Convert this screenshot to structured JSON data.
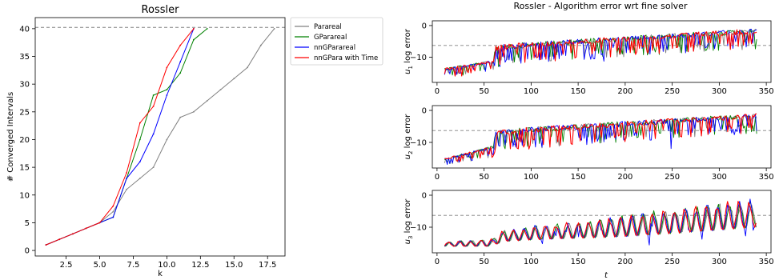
{
  "chart_data": [
    {
      "type": "line",
      "title": "Rossler",
      "xlabel": "k",
      "ylabel": "# Converged Intervals",
      "xlim": [
        0.2,
        18.8
      ],
      "ylim": [
        -1,
        42
      ],
      "xticks": [
        2.5,
        5.0,
        7.5,
        10.0,
        12.5,
        15.0,
        17.5
      ],
      "xtick_labels": [
        "2.5",
        "5.0",
        "7.5",
        "10.0",
        "12.5",
        "15.0",
        "17.5"
      ],
      "yticks": [
        0,
        5,
        10,
        15,
        20,
        25,
        30,
        35,
        40
      ],
      "ytick_labels": [
        "0",
        "5",
        "10",
        "15",
        "20",
        "25",
        "30",
        "35",
        "40"
      ],
      "reference_line": {
        "y": 40,
        "style": "dashed"
      },
      "legend": "outside-right",
      "series": [
        {
          "name": "Parareal",
          "color": "#808080",
          "x": [
            1,
            2,
            3,
            4,
            5,
            6,
            7,
            8,
            9,
            10,
            11,
            12,
            13,
            14,
            15,
            16,
            17,
            18
          ],
          "y": [
            1,
            2,
            3,
            4,
            5,
            7,
            11,
            13,
            15,
            20,
            24,
            25,
            27,
            29,
            31,
            33,
            37,
            40
          ]
        },
        {
          "name": "GParareal",
          "color": "#008000",
          "x": [
            1,
            2,
            3,
            4,
            5,
            6,
            7,
            8,
            9,
            10,
            11,
            12,
            13
          ],
          "y": [
            1,
            2,
            3,
            4,
            5,
            6,
            13,
            20,
            28,
            29,
            32,
            38,
            40
          ]
        },
        {
          "name": "nnGParareal",
          "color": "#0000ff",
          "x": [
            1,
            2,
            3,
            4,
            5,
            6,
            7,
            8,
            9,
            10,
            11,
            12
          ],
          "y": [
            1,
            2,
            3,
            4,
            5,
            6,
            13,
            16,
            21,
            28,
            34,
            40
          ]
        },
        {
          "name": "nnGPara with Time",
          "color": "#ff0000",
          "x": [
            1,
            2,
            3,
            4,
            5,
            6,
            7,
            8,
            9,
            10,
            11,
            12
          ],
          "y": [
            1,
            2,
            3,
            4,
            5,
            8,
            14,
            23,
            26,
            33,
            37,
            40
          ]
        }
      ]
    },
    {
      "type": "line",
      "title": "Rossler - Algorithm error wrt fine solver",
      "xlabel": "t",
      "xlim": [
        -5,
        355
      ],
      "xticks": [
        0,
        50,
        100,
        150,
        200,
        250,
        300,
        350
      ],
      "xtick_labels": [
        "0",
        "50",
        "100",
        "150",
        "200",
        "250",
        "300",
        "350"
      ],
      "subplots": [
        {
          "ylabel_var": "u",
          "ylabel_sub": "1",
          "ylabel_rest": " log error",
          "ylim": [
            -18,
            1.5
          ],
          "yticks": [
            0,
            -10
          ],
          "ytick_labels": [
            "0",
            "−10"
          ],
          "reference_line": {
            "y": -6.3,
            "style": "dashed"
          },
          "envelope": {
            "t": [
              8,
              60,
              62,
              70,
              100,
              150,
              200,
              250,
              300,
              340
            ],
            "upper": [
              -13.5,
              -11.0,
              -6.5,
              -6.0,
              -5.2,
              -4.3,
              -3.4,
              -2.5,
              -1.6,
              -1.0
            ],
            "lower": [
              -16.5,
              -15.0,
              -14.0,
              -13.0,
              -12.0,
              -11.0,
              -10.0,
              -9.0,
              -8.0,
              -7.5
            ]
          }
        },
        {
          "ylabel_var": "u",
          "ylabel_sub": "2",
          "ylabel_rest": " log error",
          "ylim": [
            -18,
            1.5
          ],
          "yticks": [
            0,
            -10
          ],
          "ytick_labels": [
            "0",
            "−10"
          ],
          "reference_line": {
            "y": -6.3,
            "style": "dashed"
          },
          "envelope": {
            "t": [
              8,
              60,
              62,
              70,
              100,
              150,
              200,
              250,
              300,
              340
            ],
            "upper": [
              -15.0,
              -11.0,
              -6.5,
              -6.0,
              -5.2,
              -4.3,
              -3.4,
              -2.5,
              -1.6,
              -1.0
            ],
            "lower": [
              -17.0,
              -15.0,
              -14.0,
              -13.0,
              -12.0,
              -11.0,
              -10.0,
              -9.0,
              -8.0,
              -7.5
            ]
          }
        },
        {
          "ylabel_var": "u",
          "ylabel_sub": "3",
          "ylabel_rest": " log error",
          "ylim": [
            -18,
            1.5
          ],
          "yticks": [
            0,
            -10
          ],
          "ytick_labels": [
            "0",
            "−10"
          ],
          "reference_line": {
            "y": -6.3,
            "style": "dashed"
          },
          "envelope": {
            "t": [
              8,
              60,
              62,
              70,
              100,
              150,
              200,
              250,
              300,
              340
            ],
            "upper": [
              -14.5,
              -13.5,
              -11.5,
              -11.0,
              -9.5,
              -8.0,
              -6.0,
              -4.0,
              -2.0,
              -1.0
            ],
            "lower": [
              -16.0,
              -16.0,
              -15.5,
              -14.5,
              -14.0,
              -13.5,
              -13.0,
              -12.0,
              -11.0,
              -10.0
            ]
          }
        }
      ],
      "series": [
        {
          "color": "#808080"
        },
        {
          "color": "#008000"
        },
        {
          "color": "#0000ff"
        },
        {
          "color": "#ff0000"
        }
      ]
    }
  ]
}
